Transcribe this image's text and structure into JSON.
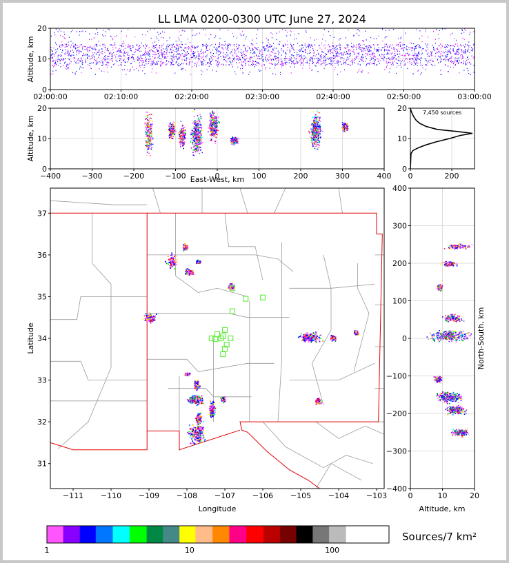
{
  "chart_data": [
    {
      "type": "scatter",
      "panel": "altitude-vs-time",
      "title": "LL LMA 0200-0300 UTC June 27, 2024",
      "ylabel": "Altitude, km",
      "ylim": [
        0,
        20
      ],
      "yticks": [
        "0",
        "10",
        "20"
      ],
      "xticks": [
        "02:00:00",
        "02:10:00",
        "02:20:00",
        "02:30:00",
        "02:40:00",
        "02:50:00",
        "03:00:00"
      ],
      "xlim_minutes": [
        0,
        60
      ],
      "altitude_band_km": [
        5,
        20
      ],
      "dense_band_km": [
        8,
        15
      ],
      "grid": true
    },
    {
      "type": "heatmap",
      "panel": "altitude-vs-east-west",
      "xlabel": "East-West, km",
      "ylabel": "Altitude, km",
      "xlim": [
        -400,
        400
      ],
      "ylim": [
        0,
        20
      ],
      "xticks": [
        "−400",
        "−300",
        "−200",
        "−100",
        "0",
        "100",
        "200",
        "300",
        "400"
      ],
      "yticks": [
        "0",
        "10",
        "20"
      ],
      "clusters_km": [
        {
          "x": -165,
          "z": [
            3,
            20
          ],
          "intensity": 0.45
        },
        {
          "x": -110,
          "z": [
            9,
            16
          ],
          "intensity": 0.3
        },
        {
          "x": -85,
          "z": [
            6,
            16
          ],
          "intensity": 0.35
        },
        {
          "x": -50,
          "z": [
            3,
            20
          ],
          "intensity": 1.0
        },
        {
          "x": -10,
          "z": [
            8,
            20
          ],
          "intensity": 0.7
        },
        {
          "x": 40,
          "z": [
            8,
            11
          ],
          "intensity": 0.45
        },
        {
          "x": 235,
          "z": [
            5,
            20
          ],
          "intensity": 0.95
        },
        {
          "x": 305,
          "z": [
            12,
            16
          ],
          "intensity": 0.2
        }
      ]
    },
    {
      "type": "line",
      "panel": "altitude-histogram",
      "annotation": "7,450 sources",
      "xticks": [
        "0",
        "200"
      ],
      "yticks": [
        "0",
        "10",
        "20"
      ],
      "xlim": [
        0,
        310
      ],
      "ylim": [
        0,
        20
      ],
      "profile": [
        {
          "alt": 0,
          "count": 0
        },
        {
          "alt": 5,
          "count": 3
        },
        {
          "alt": 6,
          "count": 12
        },
        {
          "alt": 7,
          "count": 40
        },
        {
          "alt": 8,
          "count": 80
        },
        {
          "alt": 9,
          "count": 130
        },
        {
          "alt": 10,
          "count": 190
        },
        {
          "alt": 11,
          "count": 240
        },
        {
          "alt": 11.7,
          "count": 300
        },
        {
          "alt": 12.3,
          "count": 230
        },
        {
          "alt": 13,
          "count": 130
        },
        {
          "alt": 14,
          "count": 75
        },
        {
          "alt": 15,
          "count": 45
        },
        {
          "alt": 16,
          "count": 28
        },
        {
          "alt": 17,
          "count": 18
        },
        {
          "alt": 18,
          "count": 10
        },
        {
          "alt": 19,
          "count": 4
        },
        {
          "alt": 20,
          "count": 0
        }
      ]
    },
    {
      "type": "heatmap",
      "panel": "plan-view-map",
      "xlabel": "Longitude",
      "ylabel": "Latitude",
      "xlim": [
        -111.6,
        -102.8
      ],
      "ylim": [
        30.4,
        37.6
      ],
      "xticks": [
        "−111",
        "−110",
        "−109",
        "−108",
        "−107",
        "−106",
        "−105",
        "−104",
        "−103"
      ],
      "yticks": [
        "31",
        "32",
        "33",
        "34",
        "35",
        "36",
        "37"
      ],
      "lma_stations": [
        [
          -106.8,
          35.2
        ],
        [
          -106.45,
          34.95
        ],
        [
          -106.0,
          34.98
        ],
        [
          -106.8,
          34.65
        ],
        [
          -107.0,
          34.2
        ],
        [
          -107.2,
          34.1
        ],
        [
          -107.1,
          34.0
        ],
        [
          -107.25,
          33.98
        ],
        [
          -107.35,
          34.0
        ],
        [
          -106.85,
          34.0
        ],
        [
          -106.95,
          33.85
        ],
        [
          -107.0,
          33.75
        ],
        [
          -107.05,
          33.62
        ],
        [
          -107.05,
          34.05
        ]
      ],
      "source_clusters": [
        {
          "lon": -108.05,
          "lat": 36.2,
          "w": 0.1,
          "h": 0.1,
          "intensity": 0.3
        },
        {
          "lon": -108.4,
          "lat": 35.85,
          "w": 0.2,
          "h": 0.25,
          "intensity": 0.25
        },
        {
          "lon": -107.95,
          "lat": 35.6,
          "w": 0.15,
          "h": 0.1,
          "intensity": 0.3
        },
        {
          "lon": -107.7,
          "lat": 35.85,
          "w": 0.08,
          "h": 0.05,
          "intensity": 0.3
        },
        {
          "lon": -106.85,
          "lat": 35.25,
          "w": 0.1,
          "h": 0.1,
          "intensity": 0.3
        },
        {
          "lon": -109.0,
          "lat": 34.5,
          "w": 0.25,
          "h": 0.15,
          "intensity": 0.4
        },
        {
          "lon": -104.75,
          "lat": 34.03,
          "w": 0.35,
          "h": 0.15,
          "intensity": 0.8
        },
        {
          "lon": -104.15,
          "lat": 34.02,
          "w": 0.1,
          "h": 0.1,
          "intensity": 0.3
        },
        {
          "lon": -103.55,
          "lat": 34.15,
          "w": 0.08,
          "h": 0.08,
          "intensity": 0.2
        },
        {
          "lon": -108.0,
          "lat": 33.15,
          "w": 0.1,
          "h": 0.05,
          "intensity": 0.3
        },
        {
          "lon": -107.75,
          "lat": 32.9,
          "w": 0.1,
          "h": 0.15,
          "intensity": 0.4
        },
        {
          "lon": -107.8,
          "lat": 32.55,
          "w": 0.25,
          "h": 0.15,
          "intensity": 1.0
        },
        {
          "lon": -107.35,
          "lat": 32.3,
          "w": 0.1,
          "h": 0.25,
          "intensity": 0.7
        },
        {
          "lon": -107.7,
          "lat": 32.1,
          "w": 0.1,
          "h": 0.2,
          "intensity": 0.4
        },
        {
          "lon": -107.75,
          "lat": 31.75,
          "w": 0.3,
          "h": 0.35,
          "intensity": 0.9
        },
        {
          "lon": -104.55,
          "lat": 32.5,
          "w": 0.1,
          "h": 0.1,
          "intensity": 0.4
        },
        {
          "lon": -107.05,
          "lat": 32.55,
          "w": 0.08,
          "h": 0.1,
          "intensity": 0.3
        }
      ]
    },
    {
      "type": "heatmap",
      "panel": "north-south-vs-altitude",
      "xlabel": "Altitude, km",
      "ylabel": "North-South, km",
      "xlim": [
        0,
        20
      ],
      "ylim": [
        -400,
        400
      ],
      "xticks": [
        "0",
        "10",
        "20"
      ],
      "yticks": [
        "−400",
        "−300",
        "−200",
        "−100",
        "0",
        "100",
        "200",
        "300",
        "400"
      ],
      "clusters_km": [
        {
          "alt": [
            9,
            20
          ],
          "ns": 245,
          "intensity": 0.2
        },
        {
          "alt": [
            9,
            15
          ],
          "ns": 200,
          "intensity": 0.25
        },
        {
          "alt": [
            8,
            10
          ],
          "ns": 138,
          "intensity": 0.4
        },
        {
          "alt": [
            9,
            17
          ],
          "ns": 55,
          "intensity": 0.5
        },
        {
          "alt": [
            4,
            20
          ],
          "ns": 8,
          "intensity": 1.0
        },
        {
          "alt": [
            7,
            10
          ],
          "ns": -108,
          "intensity": 0.35
        },
        {
          "alt": [
            7,
            17
          ],
          "ns": -155,
          "intensity": 0.95
        },
        {
          "alt": [
            10,
            18
          ],
          "ns": -190,
          "intensity": 0.65
        },
        {
          "alt": [
            12,
            19
          ],
          "ns": -250,
          "intensity": 0.5
        }
      ]
    },
    {
      "type": "table",
      "panel": "colorbar",
      "label": "Sources/7 km²",
      "tick_labels": [
        "1",
        "10",
        "100"
      ],
      "scale": "log",
      "colors": [
        "#ff55ff",
        "#8800ff",
        "#0000ff",
        "#0077ff",
        "#00ffff",
        "#00ff00",
        "#008844",
        "#448888",
        "#ffff00",
        "#ffbb88",
        "#ff8800",
        "#ff0088",
        "#ff0000",
        "#bb0000",
        "#770000",
        "#000000",
        "#777777",
        "#bbbbbb",
        "#ffffff"
      ]
    }
  ]
}
